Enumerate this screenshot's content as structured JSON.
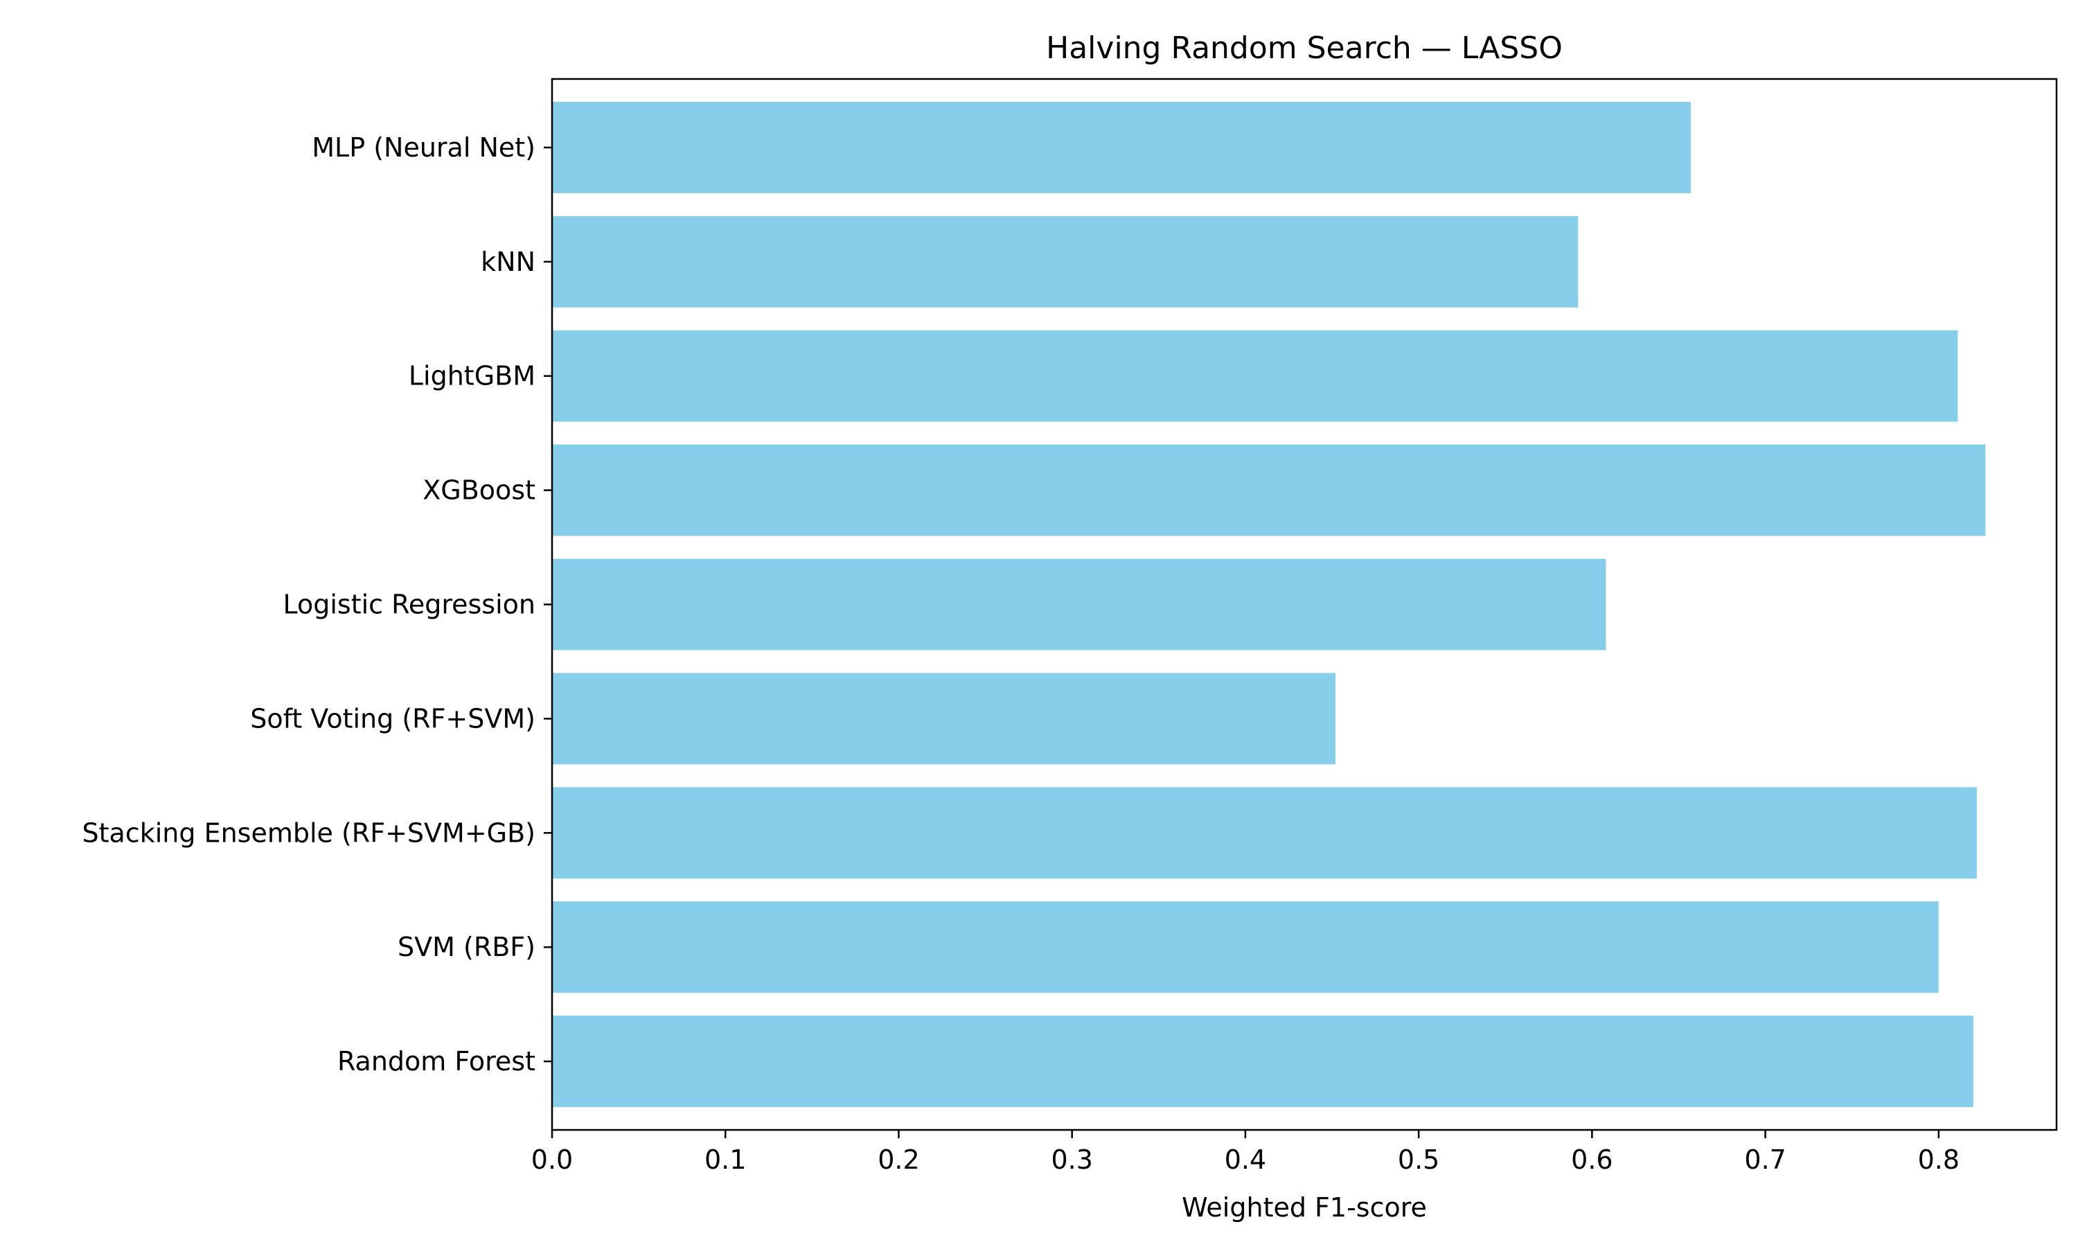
{
  "chart_data": {
    "type": "bar",
    "orientation": "horizontal",
    "title": "Halving Random Search — LASSO",
    "xlabel": "Weighted F1-score",
    "ylabel": "",
    "xlim": [
      0,
      0.868
    ],
    "xticks": [
      "0.0",
      "0.1",
      "0.2",
      "0.3",
      "0.4",
      "0.5",
      "0.6",
      "0.7",
      "0.8"
    ],
    "categories": [
      "Random Forest",
      "SVM (RBF)",
      "Stacking Ensemble (RF+SVM+GB)",
      "Soft Voting (RF+SVM)",
      "Logistic Regression",
      "XGBoost",
      "LightGBM",
      "kNN",
      "MLP (Neural Net)"
    ],
    "values": [
      0.82,
      0.8,
      0.822,
      0.452,
      0.608,
      0.827,
      0.811,
      0.592,
      0.657
    ],
    "bar_color": "#87ceeb",
    "grid": false,
    "legend": "none"
  }
}
